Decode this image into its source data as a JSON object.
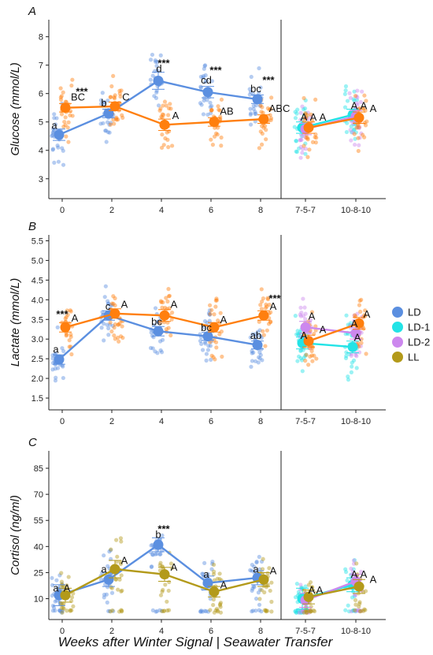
{
  "colors": {
    "LD": "#5b8fe0",
    "LD-1": "#22e3e6",
    "LD-2": "#cc88ee",
    "LL_AB": "#ff7f0e",
    "LL_C": "#b39a1a"
  },
  "x_axis_title": "Weeks after Winter Signal | Seawater Transfer",
  "legend": [
    {
      "name": "LD",
      "color": "#5b8fe0"
    },
    {
      "name": "LD-1",
      "color": "#22e3e6"
    },
    {
      "name": "LD-2",
      "color": "#cc88ee"
    },
    {
      "name": "LL",
      "color": "#b39a1a"
    }
  ],
  "chart_data": [
    {
      "panel": "A",
      "type": "scatter",
      "ylabel": "Glucose (mmol/L)",
      "left_categories": [
        "0",
        "2",
        "4",
        "6",
        "8"
      ],
      "right_categories": [
        "7-5-7",
        "10-8-10"
      ],
      "ylim": [
        2.3,
        8.6
      ],
      "yticks": [
        3,
        4,
        5,
        6,
        7,
        8
      ],
      "series": [
        {
          "name": "LD",
          "segment": "left",
          "values": [
            4.55,
            5.3,
            6.45,
            6.05,
            5.8
          ],
          "err": [
            0.2,
            0.15,
            0.3,
            0.2,
            0.15
          ]
        },
        {
          "name": "LL",
          "segment": "left",
          "values": [
            5.5,
            5.55,
            4.9,
            5.0,
            5.1
          ],
          "err": [
            0.15,
            0.15,
            0.2,
            0.15,
            0.15
          ]
        },
        {
          "name": "LD-1",
          "segment": "right",
          "values": [
            4.8,
            5.25
          ],
          "err": [
            0.2,
            0.2
          ]
        },
        {
          "name": "LD-2",
          "segment": "right",
          "values": [
            4.75,
            5.2
          ],
          "err": [
            0.2,
            0.2
          ]
        },
        {
          "name": "LL",
          "segment": "right",
          "values": [
            4.8,
            5.15
          ],
          "err": [
            0.2,
            0.2
          ]
        }
      ],
      "annotations": [
        {
          "text": "a",
          "cat": 0,
          "seg": "left",
          "y": 4.75,
          "dx": -10
        },
        {
          "text": "b",
          "cat": 1,
          "seg": "left",
          "y": 5.55,
          "dx": -10
        },
        {
          "text": "d",
          "cat": 2,
          "seg": "left",
          "y": 6.75,
          "dx": -3
        },
        {
          "text": "cd",
          "cat": 3,
          "seg": "left",
          "y": 6.35,
          "dx": -6
        },
        {
          "text": "bc",
          "cat": 4,
          "seg": "left",
          "y": 6.05,
          "dx": -6
        },
        {
          "text": "BC",
          "cat": 0,
          "seg": "left",
          "y": 5.75,
          "dx": 20
        },
        {
          "text": "C",
          "cat": 1,
          "seg": "left",
          "y": 5.75,
          "dx": 18
        },
        {
          "text": "A",
          "cat": 2,
          "seg": "left",
          "y": 5.1,
          "dx": 18
        },
        {
          "text": "AB",
          "cat": 3,
          "seg": "left",
          "y": 5.25,
          "dx": 20
        },
        {
          "text": "ABC",
          "cat": 4,
          "seg": "left",
          "y": 5.35,
          "dx": 24
        },
        {
          "text": "A",
          "cat": 0,
          "seg": "right",
          "y": 5.05,
          "dx": -2
        },
        {
          "text": "A",
          "cat": 0,
          "seg": "right",
          "y": 5.05,
          "dx": 10
        },
        {
          "text": "A",
          "cat": 0,
          "seg": "right",
          "y": 5.05,
          "dx": 22
        },
        {
          "text": "A",
          "cat": 1,
          "seg": "right",
          "y": 5.45,
          "dx": -2
        },
        {
          "text": "A",
          "cat": 1,
          "seg": "right",
          "y": 5.45,
          "dx": 10
        },
        {
          "text": "A",
          "cat": 1,
          "seg": "right",
          "y": 5.35,
          "dx": 22
        }
      ],
      "stars": [
        {
          "cat": 0,
          "y": 5.95,
          "dx": 25
        },
        {
          "cat": 2,
          "y": 6.95,
          "dx": 3
        },
        {
          "cat": 3,
          "y": 6.7,
          "dx": 6
        },
        {
          "cat": 4,
          "y": 6.35,
          "dx": 10
        }
      ]
    },
    {
      "panel": "B",
      "type": "scatter",
      "ylabel": "Lactate (mmol/L)",
      "left_categories": [
        "0",
        "2",
        "4",
        "6",
        "8"
      ],
      "right_categories": [
        "7-5-7",
        "10-8-10"
      ],
      "ylim": [
        1.2,
        5.65
      ],
      "yticks": [
        1.5,
        2.0,
        2.5,
        3.0,
        3.5,
        4.0,
        4.5,
        5.0,
        5.5
      ],
      "series": [
        {
          "name": "LD",
          "segment": "left",
          "values": [
            2.48,
            3.6,
            3.2,
            3.07,
            2.85
          ],
          "err": [
            0.12,
            0.12,
            0.12,
            0.1,
            0.1
          ]
        },
        {
          "name": "LL",
          "segment": "left",
          "values": [
            3.3,
            3.65,
            3.6,
            3.3,
            3.6
          ],
          "err": [
            0.12,
            0.12,
            0.15,
            0.12,
            0.12
          ]
        },
        {
          "name": "LD-1",
          "segment": "right",
          "values": [
            2.9,
            2.8
          ],
          "err": [
            0.15,
            0.15
          ]
        },
        {
          "name": "LD-2",
          "segment": "right",
          "values": [
            3.3,
            3.15
          ],
          "err": [
            0.15,
            0.15
          ]
        },
        {
          "name": "LL",
          "segment": "right",
          "values": [
            2.95,
            3.4
          ],
          "err": [
            0.15,
            0.15
          ]
        }
      ],
      "annotations": [
        {
          "text": "a",
          "cat": 0,
          "seg": "left",
          "y": 2.65,
          "dx": -8
        },
        {
          "text": "c",
          "cat": 1,
          "seg": "left",
          "y": 3.75,
          "dx": -5
        },
        {
          "text": "bc",
          "cat": 2,
          "seg": "left",
          "y": 3.35,
          "dx": -6
        },
        {
          "text": "bc",
          "cat": 3,
          "seg": "left",
          "y": 3.2,
          "dx": -6
        },
        {
          "text": "ab",
          "cat": 4,
          "seg": "left",
          "y": 3.0,
          "dx": -6
        },
        {
          "text": "A",
          "cat": 0,
          "seg": "left",
          "y": 3.45,
          "dx": 16
        },
        {
          "text": "A",
          "cat": 1,
          "seg": "left",
          "y": 3.8,
          "dx": 16
        },
        {
          "text": "A",
          "cat": 2,
          "seg": "left",
          "y": 3.8,
          "dx": 16
        },
        {
          "text": "A",
          "cat": 3,
          "seg": "left",
          "y": 3.4,
          "dx": 16
        },
        {
          "text": "A",
          "cat": 4,
          "seg": "left",
          "y": 3.75,
          "dx": 16
        },
        {
          "text": "A",
          "cat": 0,
          "seg": "right",
          "y": 3.0,
          "dx": -2
        },
        {
          "text": "A",
          "cat": 0,
          "seg": "right",
          "y": 3.5,
          "dx": 8
        },
        {
          "text": "A",
          "cat": 0,
          "seg": "right",
          "y": 3.15,
          "dx": 22
        },
        {
          "text": "A",
          "cat": 1,
          "seg": "right",
          "y": 3.3,
          "dx": -2
        },
        {
          "text": "A",
          "cat": 1,
          "seg": "right",
          "y": 3.55,
          "dx": 14
        },
        {
          "text": "A",
          "cat": 1,
          "seg": "right",
          "y": 2.95,
          "dx": 2
        }
      ],
      "stars": [
        {
          "cat": 0,
          "y": 3.55,
          "dx": 0
        },
        {
          "cat": 4,
          "y": 3.95,
          "dx": 18
        }
      ]
    },
    {
      "panel": "C",
      "type": "scatter",
      "ylabel": "Cortisol (ng/ml)",
      "left_categories": [
        "0",
        "2",
        "4",
        "6",
        "8"
      ],
      "right_categories": [
        "7-5-7",
        "10-8-10"
      ],
      "ylim": [
        -2,
        95
      ],
      "yticks": [
        10,
        25,
        40,
        55,
        70,
        85
      ],
      "series": [
        {
          "name": "LD",
          "segment": "left",
          "values": [
            12,
            21,
            41,
            19,
            22
          ],
          "err": [
            6,
            4,
            4,
            4,
            4
          ]
        },
        {
          "name": "LL",
          "segment": "left",
          "values": [
            12,
            27,
            24,
            14,
            21
          ],
          "err": [
            4,
            5,
            4,
            3,
            4
          ]
        },
        {
          "name": "LD-1",
          "segment": "right",
          "values": [
            10,
            18
          ],
          "err": [
            6,
            4
          ]
        },
        {
          "name": "LD-2",
          "segment": "right",
          "values": [
            9,
            20
          ],
          "err": [
            4,
            4
          ]
        },
        {
          "name": "LL",
          "segment": "right",
          "values": [
            11,
            17
          ],
          "err": [
            4,
            4
          ]
        }
      ],
      "annotations": [
        {
          "text": "a",
          "cat": 0,
          "seg": "left",
          "y": 14,
          "dx": -8
        },
        {
          "text": "a",
          "cat": 1,
          "seg": "left",
          "y": 25,
          "dx": -10
        },
        {
          "text": "b",
          "cat": 2,
          "seg": "left",
          "y": 45,
          "dx": -4
        },
        {
          "text": "a",
          "cat": 3,
          "seg": "left",
          "y": 22,
          "dx": -6
        },
        {
          "text": "a",
          "cat": 4,
          "seg": "left",
          "y": 25,
          "dx": -6
        },
        {
          "text": "A",
          "cat": 0,
          "seg": "left",
          "y": 14,
          "dx": 6
        },
        {
          "text": "A",
          "cat": 1,
          "seg": "left",
          "y": 30,
          "dx": 16
        },
        {
          "text": "A",
          "cat": 2,
          "seg": "left",
          "y": 26,
          "dx": 16
        },
        {
          "text": "A",
          "cat": 3,
          "seg": "left",
          "y": 16,
          "dx": 16
        },
        {
          "text": "A",
          "cat": 4,
          "seg": "left",
          "y": 24,
          "dx": 16
        },
        {
          "text": "A",
          "cat": 0,
          "seg": "right",
          "y": 13,
          "dx": 8
        },
        {
          "text": "A",
          "cat": 0,
          "seg": "right",
          "y": 13,
          "dx": 18
        },
        {
          "text": "A",
          "cat": 1,
          "seg": "right",
          "y": 22,
          "dx": -2
        },
        {
          "text": "A",
          "cat": 1,
          "seg": "right",
          "y": 22,
          "dx": 10
        },
        {
          "text": "A",
          "cat": 1,
          "seg": "right",
          "y": 19,
          "dx": 22
        }
      ],
      "stars": [
        {
          "cat": 2,
          "y": 48,
          "dx": 3
        }
      ]
    }
  ]
}
